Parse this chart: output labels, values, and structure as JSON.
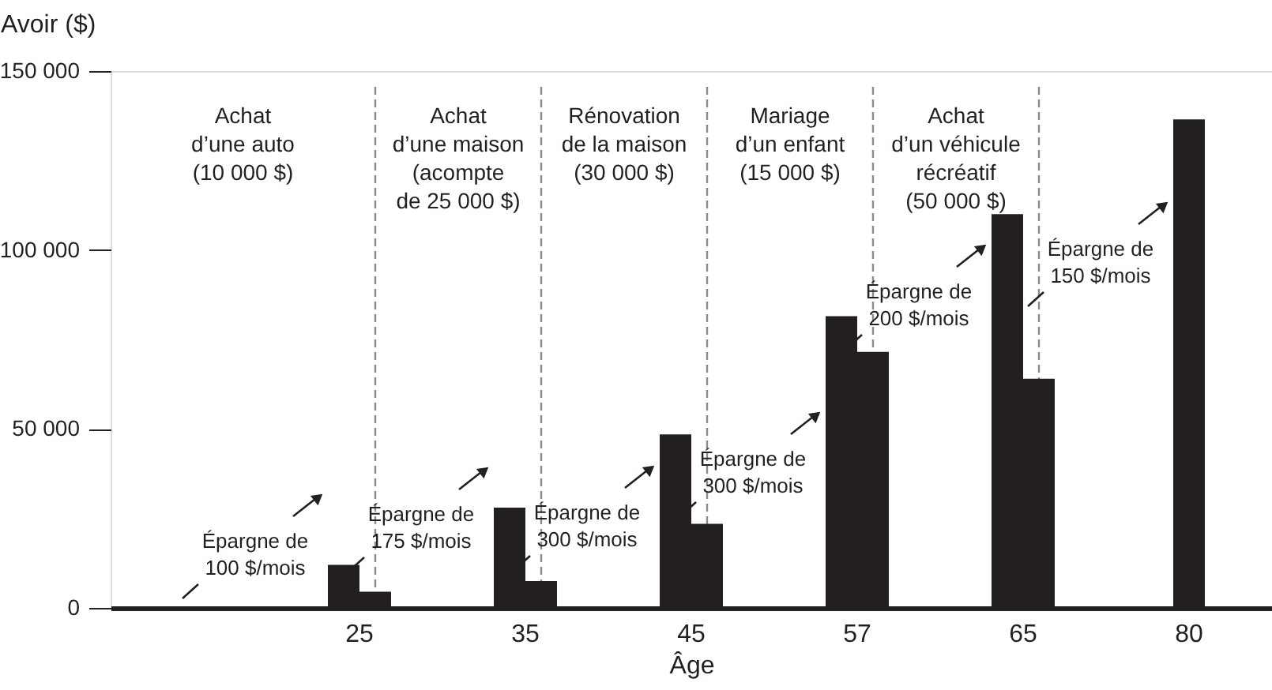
{
  "chart_data": {
    "type": "bar",
    "xlabel": "Âge",
    "ylabel": "Avoir ($)",
    "categories": [
      null,
      "25",
      "35",
      "45",
      "57",
      "65",
      "80"
    ],
    "series": [
      {
        "color": "#231f20",
        "values": [
          null,
          12000,
          28000,
          48500,
          81500,
          110000,
          null
        ]
      },
      {
        "color": "#231f20",
        "values": [
          null,
          4500,
          7500,
          23500,
          71500,
          64000,
          136500
        ]
      }
    ],
    "ylim": [
      0,
      150000
    ],
    "yticks": [
      {
        "value": 0,
        "label": "0"
      },
      {
        "value": 50000,
        "label": "50 000"
      },
      {
        "value": 100000,
        "label": "100 000"
      },
      {
        "value": 150000,
        "label": "150 000"
      }
    ],
    "ref_lines": [
      {
        "axis": "x",
        "value": "25",
        "color": "#8c8c8c",
        "line_style": "dashed"
      },
      {
        "axis": "x",
        "value": "35",
        "color": "#8c8c8c",
        "line_style": "dashed"
      },
      {
        "axis": "x",
        "value": "45",
        "color": "#8c8c8c",
        "line_style": "dashed"
      },
      {
        "axis": "x",
        "value": "57",
        "color": "#8c8c8c",
        "line_style": "dashed"
      },
      {
        "axis": "x",
        "value": "65",
        "color": "#8c8c8c",
        "line_style": "dashed"
      }
    ],
    "annotations": [
      "Achat\nd’une auto\n(10 000 $)",
      "Achat\nd’une maison\n(acompte\nde 25 000 $)",
      "Rénovation\nde la maison\n(30 000 $)",
      "Mariage\nd’un enfant\n(15 000 $)",
      "Achat\nd’un véhicule\nrécréatif\n(50 000 $)",
      "Épargne de\n100 $/mois",
      "Épargne de\n175 $/mois",
      "Épargne de\n300 $/mois",
      "Épargne de\n300 $/mois",
      "Épargne de\n200 $/mois",
      "Épargne de\n150 $/mois"
    ]
  }
}
